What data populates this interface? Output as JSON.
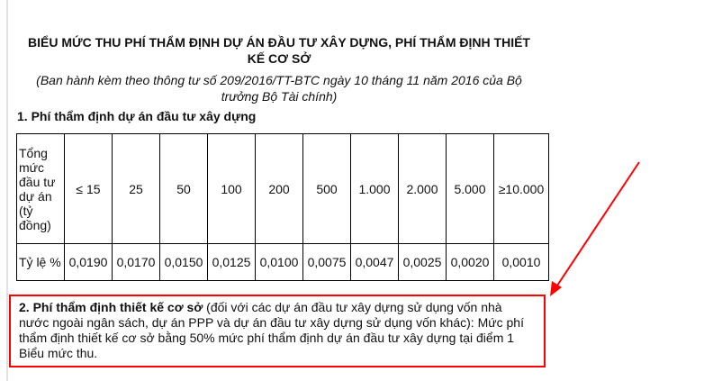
{
  "title": "BIỂU MỨC THU PHÍ THẨM ĐỊNH DỰ ÁN ĐẦU TƯ XÂY DỰNG, PHÍ THẨM ĐỊNH THIẾT KẾ CƠ SỞ",
  "subtitle": "(Ban hành kèm theo thông tư số 209/2016/TT-BTC ngày 10 tháng 11 năm 2016 của Bộ trưởng Bộ Tài chính)",
  "section1": "1. Phí thẩm định dự án đầu tư xây dựng",
  "table": {
    "row1_label": "Tổng mức đầu tư dự án (tỷ đồng)",
    "row2_label": "Tỷ lệ %",
    "investment": [
      "≤ 15",
      "25",
      "50",
      "100",
      "200",
      "500",
      "1.000",
      "2.000",
      "5.000",
      "≥10.000"
    ],
    "rates": [
      "0,0190",
      "0,0170",
      "0,0150",
      "0,0125",
      "0,0100",
      "0,0075",
      "0,0047",
      "0,0025",
      "0,0020",
      "0,0010"
    ]
  },
  "section2": {
    "bold": "2. Phí thẩm định thiết kế cơ sở",
    "text": " (đối với các dự án đầu tư xây dựng sử dụng vốn nhà nước ngoài ngân sách, dự án PPP và dự án đầu tư xây dựng sử dụng vốn khác): Mức phí thẩm định thiết kế cơ sở bằng 50% mức phí thẩm định dự án đầu tư xây dựng tại điểm 1 Biểu mức thu."
  },
  "highlight_color": "#ff0000"
}
